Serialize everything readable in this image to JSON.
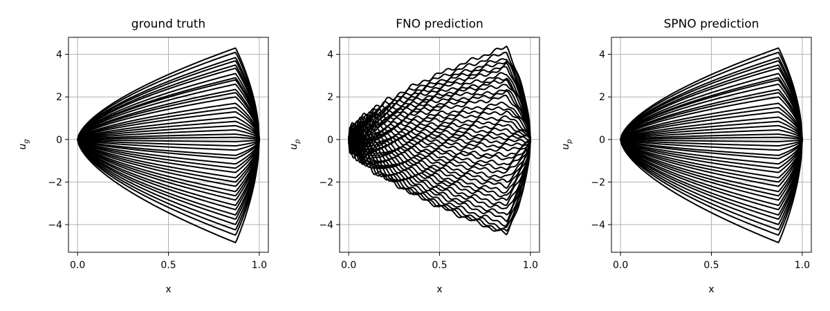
{
  "chart_data": [
    {
      "type": "line",
      "title": "ground truth",
      "xlabel": "x",
      "ylabel_base": "u",
      "ylabel_sub": "g",
      "xlim": [
        -0.05,
        1.05
      ],
      "ylim": [
        -5.3,
        4.8
      ],
      "xticks": [
        0.0,
        0.5,
        1.0
      ],
      "xtick_labels": [
        "0.0",
        "0.5",
        "1.0"
      ],
      "yticks": [
        -4,
        -2,
        0,
        2,
        4
      ],
      "ytick_labels": [
        "−4",
        "−2",
        "0",
        "2",
        "4"
      ],
      "grid": true,
      "line_color": "#000000",
      "curve_peak_x": 0.87,
      "curve_end_x": 1.0,
      "series_amplitudes": [
        4.3,
        4.1,
        3.85,
        3.7,
        3.5,
        3.35,
        3.1,
        2.9,
        2.8,
        2.6,
        2.35,
        2.2,
        2.0,
        1.7,
        1.5,
        1.3,
        1.05,
        0.85,
        0.65,
        0.45,
        0.25,
        0.1,
        -0.1,
        -0.3,
        -0.5,
        -0.75,
        -0.9,
        -1.15,
        -1.35,
        -1.55,
        -1.8,
        -2.0,
        -2.2,
        -2.45,
        -2.65,
        -2.85,
        -3.1,
        -3.3,
        -3.55,
        -3.75,
        -4.0,
        -4.25,
        -4.5,
        -4.85
      ],
      "noisy_prediction": false
    },
    {
      "type": "line",
      "title": "FNO prediction",
      "xlabel": "x",
      "ylabel_base": "u",
      "ylabel_sub": "p",
      "xlim": [
        -0.05,
        1.05
      ],
      "ylim": [
        -5.3,
        4.8
      ],
      "xticks": [
        0.0,
        0.5,
        1.0
      ],
      "xtick_labels": [
        "0.0",
        "0.5",
        "1.0"
      ],
      "yticks": [
        -4,
        -2,
        0,
        2,
        4
      ],
      "ytick_labels": [
        "−4",
        "−2",
        "0",
        "2",
        "4"
      ],
      "grid": true,
      "line_color": "#000000",
      "curve_peak_x": 0.87,
      "curve_end_x": 1.0,
      "series_amplitudes": [
        4.35,
        4.1,
        3.85,
        3.7,
        3.5,
        3.35,
        3.1,
        2.9,
        2.8,
        2.6,
        2.35,
        2.2,
        2.0,
        1.7,
        1.5,
        1.3,
        1.05,
        0.85,
        0.65,
        0.45,
        0.25,
        0.1,
        -0.1,
        -0.3,
        -0.5,
        -0.75,
        -0.9,
        -1.15,
        -1.35,
        -1.55,
        -1.8,
        -2.0,
        -2.2,
        -2.45,
        -2.65,
        -2.85,
        -3.1,
        -3.3,
        -3.55,
        -3.75,
        -4.0,
        -4.2,
        -4.35,
        -4.45
      ],
      "noisy_prediction": true
    },
    {
      "type": "line",
      "title": "SPNO prediction",
      "xlabel": "x",
      "ylabel_base": "u",
      "ylabel_sub": "p",
      "xlim": [
        -0.05,
        1.05
      ],
      "ylim": [
        -5.3,
        4.8
      ],
      "xticks": [
        0.0,
        0.5,
        1.0
      ],
      "xtick_labels": [
        "0.0",
        "0.5",
        "1.0"
      ],
      "yticks": [
        -4,
        -2,
        0,
        2,
        4
      ],
      "ytick_labels": [
        "−4",
        "−2",
        "0",
        "2",
        "4"
      ],
      "grid": true,
      "line_color": "#000000",
      "curve_peak_x": 0.87,
      "curve_end_x": 1.0,
      "series_amplitudes": [
        4.3,
        4.1,
        3.85,
        3.7,
        3.5,
        3.35,
        3.1,
        2.9,
        2.8,
        2.6,
        2.35,
        2.2,
        2.0,
        1.7,
        1.5,
        1.3,
        1.05,
        0.85,
        0.65,
        0.45,
        0.25,
        0.1,
        -0.1,
        -0.3,
        -0.5,
        -0.75,
        -0.9,
        -1.15,
        -1.35,
        -1.55,
        -1.8,
        -2.0,
        -2.2,
        -2.45,
        -2.65,
        -2.85,
        -3.1,
        -3.3,
        -3.55,
        -3.75,
        -4.0,
        -4.25,
        -4.5,
        -4.85
      ],
      "noisy_prediction": false
    }
  ]
}
